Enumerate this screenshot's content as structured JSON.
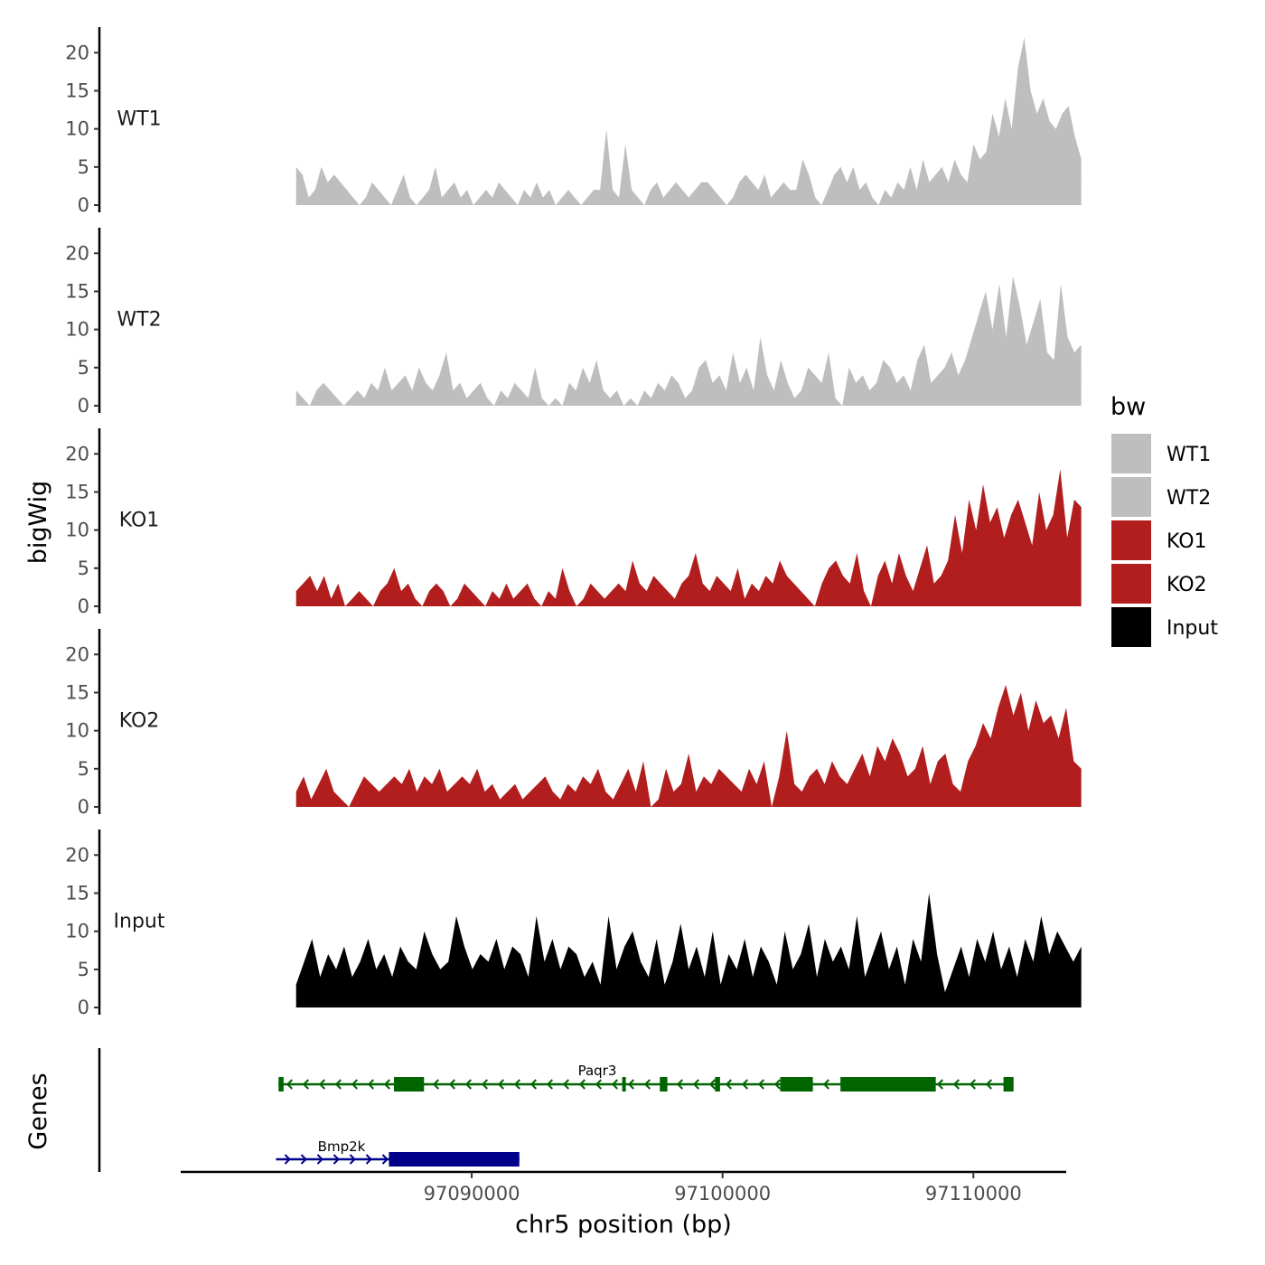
{
  "chart_data": {
    "type": "area",
    "title": "",
    "ylabel": "bigWig",
    "xlabel": "chr5 position (bp)",
    "xlim": [
      97078400,
      97113700
    ],
    "ylim": [
      0,
      23
    ],
    "yticks": [
      0,
      5,
      10,
      15,
      20
    ],
    "xticks": [
      97090000,
      97100000,
      97110000
    ],
    "xtick_labels": [
      "97090000",
      "97100000",
      "97110000"
    ],
    "legend": {
      "title": "bw",
      "position": "right",
      "entries": [
        {
          "label": "WT1",
          "color": "#bebebe"
        },
        {
          "label": "WT2",
          "color": "#bebebe"
        },
        {
          "label": "KO1",
          "color": "#b21e1e"
        },
        {
          "label": "KO2",
          "color": "#b21e1e"
        },
        {
          "label": "Input",
          "color": "#000000"
        }
      ]
    },
    "data_range": [
      97083000,
      97114300
    ],
    "series": [
      {
        "name": "WT1",
        "color": "#bebebe",
        "values": [
          5,
          4,
          1,
          2,
          5,
          3,
          4,
          3,
          2,
          1,
          0,
          1,
          3,
          2,
          1,
          0,
          2,
          4,
          1,
          0,
          1,
          2,
          5,
          1,
          2,
          3,
          1,
          2,
          0,
          1,
          2,
          1,
          3,
          2,
          1,
          0,
          2,
          1,
          3,
          1,
          2,
          0,
          1,
          2,
          1,
          0,
          1,
          2,
          2,
          10,
          2,
          1,
          8,
          2,
          1,
          0,
          2,
          3,
          1,
          2,
          3,
          2,
          1,
          2,
          3,
          3,
          2,
          1,
          0,
          1,
          3,
          4,
          3,
          2,
          4,
          1,
          2,
          3,
          2,
          2,
          6,
          4,
          1,
          0,
          2,
          4,
          5,
          3,
          5,
          2,
          3,
          1,
          0,
          2,
          1,
          3,
          2,
          5,
          2,
          6,
          3,
          4,
          5,
          3,
          6,
          4,
          3,
          8,
          6,
          7,
          12,
          9,
          14,
          10,
          18,
          22,
          15,
          12,
          14,
          11,
          10,
          12,
          13,
          9,
          6
        ]
      },
      {
        "name": "WT2",
        "color": "#bebebe",
        "values": [
          2,
          1,
          0,
          2,
          3,
          2,
          1,
          0,
          1,
          2,
          1,
          3,
          2,
          5,
          2,
          3,
          4,
          2,
          5,
          3,
          2,
          4,
          7,
          2,
          3,
          1,
          2,
          3,
          1,
          0,
          2,
          1,
          3,
          2,
          1,
          5,
          1,
          0,
          1,
          0,
          3,
          2,
          5,
          3,
          6,
          2,
          1,
          2,
          0,
          1,
          0,
          2,
          1,
          3,
          2,
          4,
          3,
          1,
          2,
          5,
          6,
          3,
          4,
          2,
          7,
          3,
          5,
          2,
          9,
          4,
          2,
          6,
          3,
          1,
          2,
          5,
          4,
          3,
          7,
          1,
          0,
          5,
          3,
          4,
          2,
          3,
          6,
          5,
          3,
          4,
          2,
          6,
          8,
          3,
          4,
          5,
          7,
          4,
          6,
          9,
          12,
          15,
          10,
          16,
          9,
          17,
          13,
          8,
          11,
          14,
          7,
          6,
          16,
          9,
          7,
          8
        ]
      },
      {
        "name": "KO1",
        "color": "#b21e1e",
        "values": [
          2,
          3,
          4,
          2,
          4,
          1,
          3,
          0,
          1,
          2,
          1,
          0,
          2,
          3,
          5,
          2,
          3,
          1,
          0,
          2,
          3,
          2,
          0,
          1,
          3,
          2,
          1,
          0,
          2,
          1,
          3,
          1,
          2,
          3,
          1,
          0,
          2,
          1,
          5,
          2,
          0,
          1,
          3,
          2,
          1,
          2,
          3,
          2,
          6,
          3,
          2,
          4,
          3,
          2,
          1,
          3,
          4,
          7,
          3,
          2,
          4,
          3,
          2,
          5,
          1,
          3,
          2,
          4,
          3,
          6,
          4,
          3,
          2,
          1,
          0,
          3,
          5,
          6,
          4,
          3,
          7,
          2,
          0,
          4,
          6,
          3,
          7,
          4,
          2,
          5,
          8,
          3,
          4,
          6,
          12,
          7,
          14,
          10,
          16,
          11,
          13,
          9,
          12,
          14,
          11,
          8,
          15,
          10,
          12,
          18,
          9,
          14,
          13
        ]
      },
      {
        "name": "KO2",
        "color": "#b21e1e",
        "values": [
          2,
          4,
          1,
          3,
          5,
          2,
          1,
          0,
          2,
          4,
          3,
          2,
          3,
          4,
          3,
          5,
          2,
          4,
          3,
          5,
          2,
          3,
          4,
          3,
          5,
          2,
          3,
          1,
          2,
          3,
          1,
          2,
          3,
          4,
          2,
          1,
          3,
          2,
          4,
          3,
          5,
          2,
          1,
          3,
          5,
          2,
          6,
          0,
          1,
          5,
          2,
          3,
          7,
          2,
          4,
          3,
          5,
          4,
          3,
          2,
          5,
          3,
          6,
          0,
          4,
          10,
          3,
          2,
          4,
          5,
          3,
          6,
          4,
          3,
          5,
          7,
          4,
          8,
          6,
          9,
          7,
          4,
          5,
          8,
          3,
          6,
          7,
          3,
          2,
          6,
          8,
          11,
          9,
          13,
          16,
          12,
          15,
          10,
          14,
          11,
          12,
          9,
          13,
          6,
          5
        ]
      },
      {
        "name": "Input",
        "color": "#000000",
        "values": [
          3,
          6,
          9,
          4,
          7,
          5,
          8,
          4,
          6,
          9,
          5,
          7,
          4,
          8,
          6,
          5,
          10,
          7,
          5,
          6,
          12,
          8,
          5,
          7,
          6,
          9,
          5,
          8,
          7,
          4,
          12,
          6,
          9,
          5,
          8,
          7,
          4,
          6,
          3,
          12,
          5,
          8,
          10,
          6,
          4,
          9,
          3,
          6,
          11,
          5,
          8,
          4,
          10,
          3,
          7,
          5,
          9,
          4,
          8,
          6,
          3,
          10,
          5,
          7,
          11,
          4,
          9,
          6,
          8,
          5,
          12,
          4,
          7,
          10,
          5,
          8,
          3,
          9,
          6,
          15,
          7,
          2,
          5,
          8,
          4,
          9,
          6,
          10,
          5,
          8,
          4,
          9,
          6,
          12,
          7,
          10,
          8,
          6,
          8
        ]
      }
    ],
    "genes": [
      {
        "name": "Paqr3",
        "strand": "-",
        "color": "#006400",
        "start": 97082300,
        "end": 97111600,
        "exons": [
          [
            97082300,
            97082500
          ],
          [
            97086900,
            97088100
          ],
          [
            97096000,
            97096100
          ],
          [
            97097500,
            97097800
          ],
          [
            97099700,
            97099900
          ],
          [
            97102300,
            97103600
          ],
          [
            97104700,
            97108500
          ],
          [
            97111200,
            97111600
          ]
        ]
      },
      {
        "name": "Bmp2k",
        "strand": "+",
        "color": "#00008b",
        "start": 97082200,
        "end": 97091900,
        "exons": [
          [
            97086700,
            97091900
          ]
        ]
      }
    ]
  },
  "genes_axis_label": "Genes"
}
